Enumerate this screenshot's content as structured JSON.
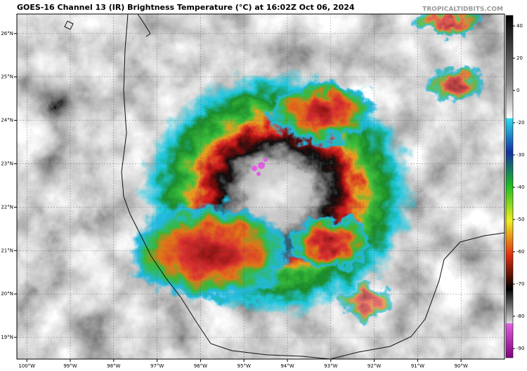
{
  "chart_data": {
    "type": "map",
    "title": "GOES-16 Channel 13 (IR) Brightness Temperature (°C) at 16:02Z Oct 06, 2024",
    "source": "TROPICALTIDBITS.COM",
    "xlim": [
      -100.23,
      -89.0
    ],
    "ylim": [
      18.5,
      26.45
    ],
    "xticks": [
      {
        "value": -100,
        "label": "100°W"
      },
      {
        "value": -99,
        "label": "99°W"
      },
      {
        "value": -98,
        "label": "98°W"
      },
      {
        "value": -97,
        "label": "97°W"
      },
      {
        "value": -96,
        "label": "96°W"
      },
      {
        "value": -95,
        "label": "95°W"
      },
      {
        "value": -94,
        "label": "94°W"
      },
      {
        "value": -93,
        "label": "93°W"
      },
      {
        "value": -92,
        "label": "92°W"
      },
      {
        "value": -91,
        "label": "91°W"
      },
      {
        "value": -90,
        "label": "90°W"
      }
    ],
    "yticks": [
      {
        "value": 19,
        "label": "19°N"
      },
      {
        "value": 20,
        "label": "20°N"
      },
      {
        "value": 21,
        "label": "21°N"
      },
      {
        "value": 22,
        "label": "22°N"
      },
      {
        "value": 23,
        "label": "23°N"
      },
      {
        "value": 24,
        "label": "24°N"
      },
      {
        "value": 25,
        "label": "25°N"
      },
      {
        "value": 26,
        "label": "26°N"
      }
    ],
    "colorbar": {
      "ticks": [
        40,
        20,
        0,
        -20,
        -30,
        -40,
        -50,
        -60,
        -70,
        -80,
        -90
      ]
    },
    "grid": true
  }
}
